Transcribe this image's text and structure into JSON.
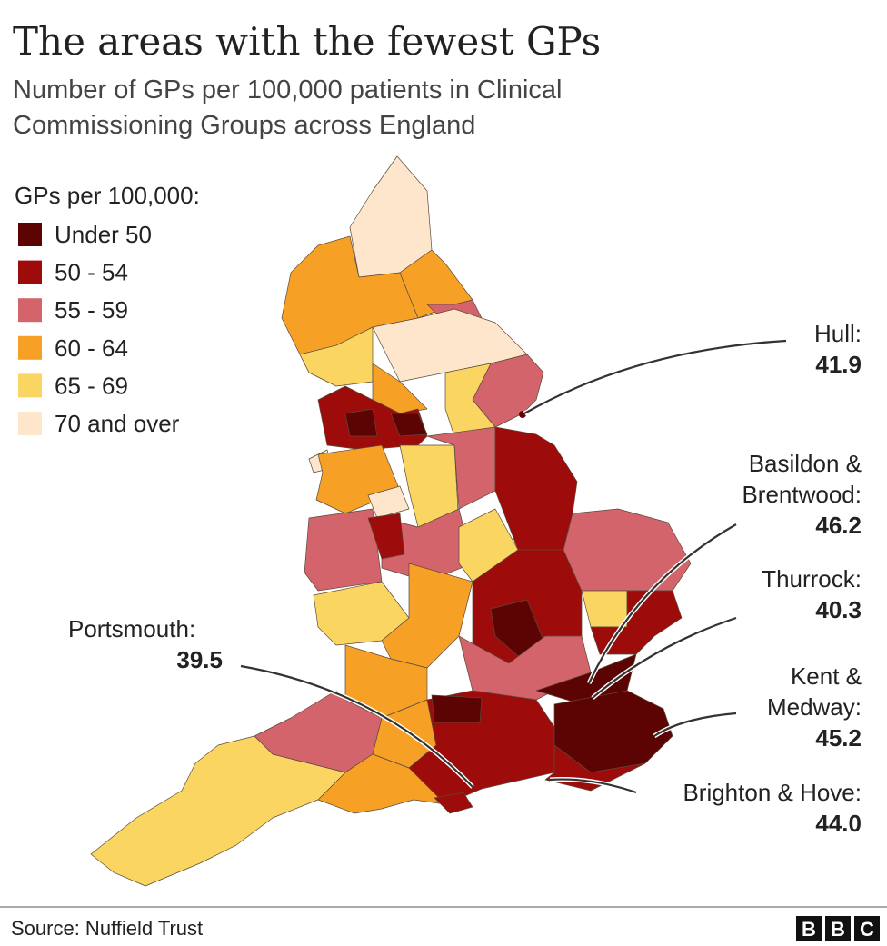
{
  "header": {
    "title": "The areas with the fewest GPs",
    "subtitle_lines": [
      "Number of GPs per 100,000 patients in Clinical",
      "Commissioning Groups across England"
    ]
  },
  "legend": {
    "title": "GPs per 100,000:",
    "items": [
      {
        "label": "Under 50",
        "color": "#5c0303"
      },
      {
        "label": "50 - 54",
        "color": "#9e0b0b"
      },
      {
        "label": "55 - 59",
        "color": "#d3646b"
      },
      {
        "label": "60 - 64",
        "color": "#f6a126"
      },
      {
        "label": "65 - 69",
        "color": "#fbd562"
      },
      {
        "label": "70 and over",
        "color": "#fde6cc"
      }
    ]
  },
  "annotations": [
    {
      "lines": [
        "Hull:"
      ],
      "value": "41.9"
    },
    {
      "lines": [
        "Basildon &",
        "Brentwood:"
      ],
      "value": "46.2"
    },
    {
      "lines": [
        "Thurrock:"
      ],
      "value": "40.3"
    },
    {
      "lines": [
        "Kent &",
        "Medway:"
      ],
      "value": "45.2"
    },
    {
      "lines": [
        "Brighton & Hove:"
      ],
      "value": "44.0"
    },
    {
      "lines": [
        "Portsmouth:"
      ],
      "value": "39.5"
    }
  ],
  "footer": {
    "source": "Source: Nuffield Trust",
    "logo": [
      "B",
      "B",
      "C"
    ]
  }
}
